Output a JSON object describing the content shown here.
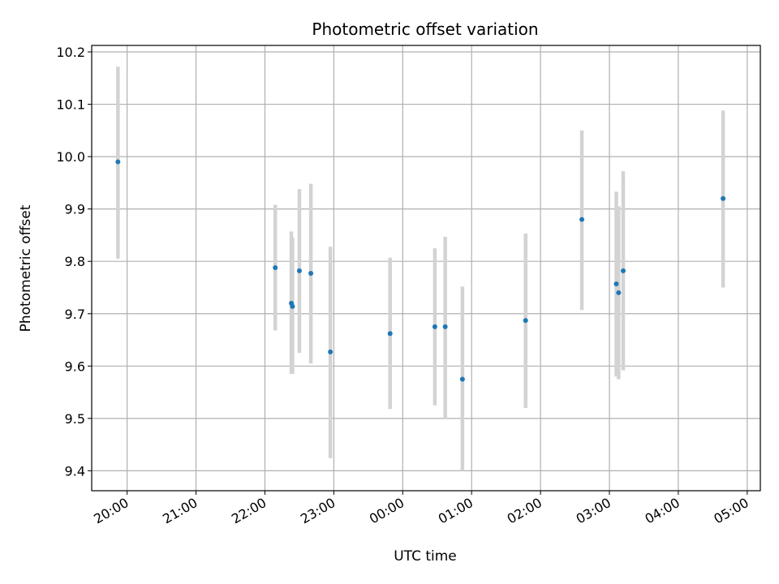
{
  "chart_data": {
    "type": "scatter",
    "title": "Photometric offset variation",
    "xlabel": "UTC time",
    "ylabel": "Photometric offset",
    "x_unit": "hours since 19:00 UTC",
    "xlim": [
      0.4857,
      10.1905
    ],
    "ylim": [
      9.3619,
      10.2124
    ],
    "x_ticks": [
      {
        "t": 1,
        "label": "20:00"
      },
      {
        "t": 2,
        "label": "21:00"
      },
      {
        "t": 3,
        "label": "22:00"
      },
      {
        "t": 4,
        "label": "23:00"
      },
      {
        "t": 5,
        "label": "00:00"
      },
      {
        "t": 6,
        "label": "01:00"
      },
      {
        "t": 7,
        "label": "02:00"
      },
      {
        "t": 8,
        "label": "03:00"
      },
      {
        "t": 9,
        "label": "04:00"
      },
      {
        "t": 10,
        "label": "05:00"
      }
    ],
    "y_ticks": [
      9.4,
      9.5,
      9.6,
      9.7,
      9.8,
      9.9,
      10.0,
      10.1,
      10.2
    ],
    "grid": true,
    "series": [
      {
        "name": "offset",
        "color": "#1f77b4",
        "error_color": "#d3d3d3",
        "points": [
          {
            "x": "19:52",
            "y": 9.99,
            "lo": 9.805,
            "hi": 10.172
          },
          {
            "x": "22:09",
            "y": 9.788,
            "lo": 9.668,
            "hi": 9.908
          },
          {
            "x": "22:23",
            "y": 9.72,
            "lo": 9.585,
            "hi": 9.857
          },
          {
            "x": "22:24",
            "y": 9.714,
            "lo": 9.585,
            "hi": 9.845
          },
          {
            "x": "22:30",
            "y": 9.782,
            "lo": 9.625,
            "hi": 9.938
          },
          {
            "x": "22:40",
            "y": 9.777,
            "lo": 9.605,
            "hi": 9.948
          },
          {
            "x": "22:57",
            "y": 9.627,
            "lo": 9.424,
            "hi": 9.828
          },
          {
            "x": "23:49",
            "y": 9.662,
            "lo": 9.518,
            "hi": 9.807
          },
          {
            "x": "00:28",
            "y": 9.675,
            "lo": 9.525,
            "hi": 9.825
          },
          {
            "x": "00:37",
            "y": 9.675,
            "lo": 9.5,
            "hi": 9.847
          },
          {
            "x": "00:52",
            "y": 9.575,
            "lo": 9.4,
            "hi": 9.752
          },
          {
            "x": "01:47",
            "y": 9.687,
            "lo": 9.52,
            "hi": 9.853
          },
          {
            "x": "02:36",
            "y": 9.88,
            "lo": 9.707,
            "hi": 10.05
          },
          {
            "x": "03:06",
            "y": 9.757,
            "lo": 9.58,
            "hi": 9.933
          },
          {
            "x": "03:08",
            "y": 9.74,
            "lo": 9.575,
            "hi": 9.905
          },
          {
            "x": "03:12",
            "y": 9.782,
            "lo": 9.592,
            "hi": 9.972
          },
          {
            "x": "04:39",
            "y": 9.92,
            "lo": 9.75,
            "hi": 10.088
          }
        ]
      }
    ]
  }
}
